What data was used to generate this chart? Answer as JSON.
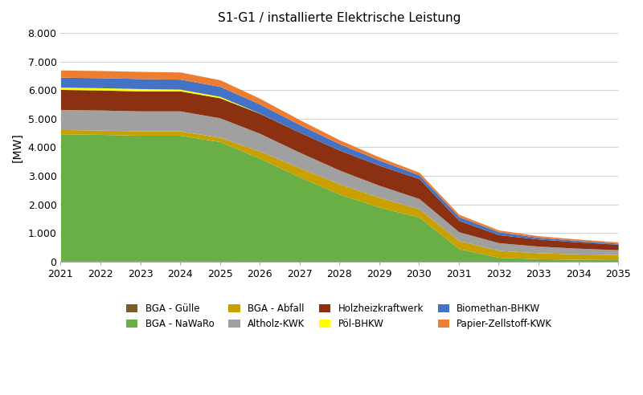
{
  "title": "S1-G1 / installierte Elektrische Leistung",
  "ylabel": "[MW]",
  "years": [
    2021,
    2022,
    2023,
    2024,
    2025,
    2026,
    2027,
    2028,
    2029,
    2030,
    2031,
    2032,
    2033,
    2034,
    2035
  ],
  "series": [
    {
      "label": "BGA - Gülle",
      "color": "#7B5B2A",
      "values": [
        20,
        20,
        20,
        20,
        18,
        16,
        14,
        12,
        10,
        8,
        6,
        5,
        4,
        3,
        3
      ]
    },
    {
      "label": "BGA - NaWaRo",
      "color": "#6AAF45",
      "values": [
        4450,
        4430,
        4400,
        4400,
        4180,
        3600,
        2950,
        2350,
        1900,
        1550,
        450,
        150,
        100,
        80,
        70
      ]
    },
    {
      "label": "BGA - Abfall",
      "color": "#C8A000",
      "values": [
        150,
        150,
        150,
        150,
        150,
        250,
        320,
        360,
        340,
        290,
        280,
        240,
        210,
        190,
        175
      ]
    },
    {
      "label": "Altholz-KWK",
      "color": "#A0A0A0",
      "values": [
        700,
        700,
        700,
        700,
        680,
        620,
        540,
        480,
        420,
        360,
        310,
        270,
        230,
        200,
        170
      ]
    },
    {
      "label": "Holzheizkraftwerk",
      "color": "#8B3010",
      "values": [
        700,
        700,
        700,
        700,
        700,
        700,
        700,
        700,
        700,
        700,
        400,
        280,
        250,
        220,
        190
      ]
    },
    {
      "label": "Pöl-BHKW",
      "color": "#FFFF00",
      "values": [
        80,
        80,
        80,
        60,
        50,
        5,
        0,
        0,
        0,
        0,
        0,
        0,
        0,
        0,
        0
      ]
    },
    {
      "label": "Biomethan-BHKW",
      "color": "#4472C4",
      "values": [
        350,
        350,
        350,
        350,
        350,
        320,
        270,
        220,
        180,
        130,
        130,
        100,
        60,
        50,
        40
      ]
    },
    {
      "label": "Papier-Zellstoff-KWK",
      "color": "#ED7D31",
      "values": [
        250,
        250,
        250,
        250,
        230,
        200,
        170,
        140,
        110,
        90,
        80,
        65,
        55,
        48,
        42
      ]
    }
  ],
  "ylim": [
    0,
    8000
  ],
  "yticks": [
    0,
    1000,
    2000,
    3000,
    4000,
    5000,
    6000,
    7000,
    8000
  ],
  "ytick_labels": [
    "0",
    "1.000",
    "2.000",
    "3.000",
    "4.000",
    "5.000",
    "6.000",
    "7.000",
    "8.000"
  ],
  "background_color": "#FFFFFF",
  "grid_color": "#D0D0D0"
}
